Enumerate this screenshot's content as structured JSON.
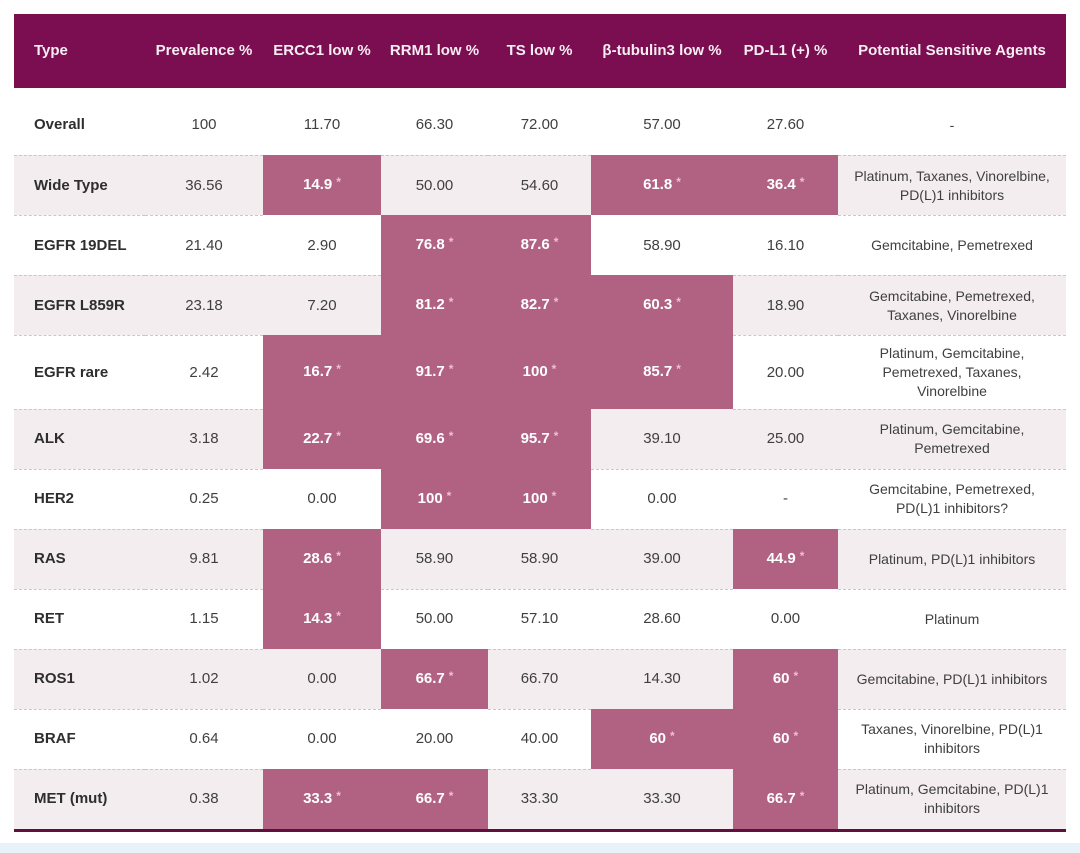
{
  "colors": {
    "header_bg": "#7a0e50",
    "header_text": "#f8ecf3",
    "highlight_bg": "#b16283",
    "highlight_text": "#ffffff",
    "asterisk_color": "#f2bdd6",
    "alt_row_bg": "#f3edf0",
    "row_bg": "#ffffff",
    "body_text": "#3f3f3f",
    "dash_color": "#c8c8c8",
    "bottom_border": "#5f0f3d"
  },
  "header": {
    "columns": [
      "Type",
      "Prevalence %",
      "ERCC1 low %",
      "RRM1 low %",
      "TS low %",
      "β-tubulin3 low %",
      "PD-L1 (+) %",
      "Potential Sensitive Agents"
    ]
  },
  "rows": [
    {
      "type": "Overall",
      "values": [
        {
          "text": "100"
        },
        {
          "text": "11.70"
        },
        {
          "text": "66.30"
        },
        {
          "text": "72.00"
        },
        {
          "text": "57.00"
        },
        {
          "text": "27.60"
        }
      ],
      "agents": "-"
    },
    {
      "type": "Wide Type",
      "values": [
        {
          "text": "36.56"
        },
        {
          "text": "14.9",
          "star": true
        },
        {
          "text": "50.00"
        },
        {
          "text": "54.60"
        },
        {
          "text": "61.8",
          "star": true
        },
        {
          "text": "36.4",
          "star": true
        }
      ],
      "agents": "Platinum, Taxanes, Vinorelbine, PD(L)1 inhibitors"
    },
    {
      "type": "EGFR 19DEL",
      "values": [
        {
          "text": "21.40"
        },
        {
          "text": "2.90"
        },
        {
          "text": "76.8",
          "star": true
        },
        {
          "text": "87.6",
          "star": true
        },
        {
          "text": "58.90"
        },
        {
          "text": "16.10"
        }
      ],
      "agents": "Gemcitabine, Pemetrexed"
    },
    {
      "type": "EGFR L859R",
      "values": [
        {
          "text": "23.18"
        },
        {
          "text": "7.20"
        },
        {
          "text": "81.2",
          "star": true
        },
        {
          "text": "82.7",
          "star": true
        },
        {
          "text": "60.3",
          "star": true
        },
        {
          "text": "18.90"
        }
      ],
      "agents": "Gemcitabine, Pemetrexed, Taxanes, Vinorelbine"
    },
    {
      "type": "EGFR rare",
      "values": [
        {
          "text": "2.42"
        },
        {
          "text": "16.7",
          "star": true
        },
        {
          "text": "91.7",
          "star": true
        },
        {
          "text": "100",
          "star": true
        },
        {
          "text": "85.7",
          "star": true
        },
        {
          "text": "20.00"
        }
      ],
      "agents": "Platinum, Gemcitabine, Pemetrexed, Taxanes, Vinorelbine"
    },
    {
      "type": "ALK",
      "values": [
        {
          "text": "3.18"
        },
        {
          "text": "22.7",
          "star": true
        },
        {
          "text": "69.6",
          "star": true
        },
        {
          "text": "95.7",
          "star": true
        },
        {
          "text": "39.10"
        },
        {
          "text": "25.00"
        }
      ],
      "agents": "Platinum, Gemcitabine, Pemetrexed"
    },
    {
      "type": "HER2",
      "values": [
        {
          "text": "0.25"
        },
        {
          "text": "0.00"
        },
        {
          "text": "100",
          "star": true
        },
        {
          "text": "100",
          "star": true
        },
        {
          "text": "0.00"
        },
        {
          "text": "-"
        }
      ],
      "agents": "Gemcitabine, Pemetrexed, PD(L)1 inhibitors?"
    },
    {
      "type": "RAS",
      "values": [
        {
          "text": "9.81"
        },
        {
          "text": "28.6",
          "star": true
        },
        {
          "text": "58.90"
        },
        {
          "text": "58.90"
        },
        {
          "text": "39.00"
        },
        {
          "text": "44.9",
          "star": true
        }
      ],
      "agents": "Platinum, PD(L)1 inhibitors"
    },
    {
      "type": "RET",
      "values": [
        {
          "text": "1.15"
        },
        {
          "text": "14.3",
          "star": true
        },
        {
          "text": "50.00"
        },
        {
          "text": "57.10"
        },
        {
          "text": "28.60"
        },
        {
          "text": "0.00"
        }
      ],
      "agents": "Platinum"
    },
    {
      "type": "ROS1",
      "values": [
        {
          "text": "1.02"
        },
        {
          "text": "0.00"
        },
        {
          "text": "66.7",
          "star": true
        },
        {
          "text": "66.70"
        },
        {
          "text": "14.30"
        },
        {
          "text": "60",
          "star": true
        }
      ],
      "agents": "Gemcitabine, PD(L)1 inhibitors"
    },
    {
      "type": "BRAF",
      "values": [
        {
          "text": "0.64"
        },
        {
          "text": "0.00"
        },
        {
          "text": "20.00"
        },
        {
          "text": "40.00"
        },
        {
          "text": "60",
          "star": true
        },
        {
          "text": "60",
          "star": true
        }
      ],
      "agents": "Taxanes, Vinorelbine, PD(L)1 inhibitors"
    },
    {
      "type": "MET (mut)",
      "values": [
        {
          "text": "0.38"
        },
        {
          "text": "33.3",
          "star": true
        },
        {
          "text": "66.7",
          "star": true
        },
        {
          "text": "33.30"
        },
        {
          "text": "33.30"
        },
        {
          "text": "66.7",
          "star": true
        }
      ],
      "agents": "Platinum, Gemcitabine, PD(L)1 inhibitors"
    }
  ],
  "chart_data": {
    "type": "table",
    "title": "",
    "columns": [
      "Type",
      "Prevalence %",
      "ERCC1 low %",
      "RRM1 low %",
      "TS low %",
      "β-tubulin3 low %",
      "PD-L1 (+) %",
      "Potential Sensitive Agents"
    ],
    "rows": [
      [
        "Overall",
        "100",
        "11.70",
        "66.30",
        "72.00",
        "57.00",
        "27.60",
        "-"
      ],
      [
        "Wide Type",
        "36.56",
        "14.9 *",
        "50.00",
        "54.60",
        "61.8 *",
        "36.4 *",
        "Platinum, Taxanes, Vinorelbine, PD(L)1 inhibitors"
      ],
      [
        "EGFR 19DEL",
        "21.40",
        "2.90",
        "76.8 *",
        "87.6 *",
        "58.90",
        "16.10",
        "Gemcitabine, Pemetrexed"
      ],
      [
        "EGFR L859R",
        "23.18",
        "7.20",
        "81.2 *",
        "82.7 *",
        "60.3 *",
        "18.90",
        "Gemcitabine, Pemetrexed, Taxanes, Vinorelbine"
      ],
      [
        "EGFR rare",
        "2.42",
        "16.7 *",
        "91.7 *",
        "100 *",
        "85.7 *",
        "20.00",
        "Platinum, Gemcitabine, Pemetrexed, Taxanes, Vinorelbine"
      ],
      [
        "ALK",
        "3.18",
        "22.7 *",
        "69.6 *",
        "95.7 *",
        "39.10",
        "25.00",
        "Platinum, Gemcitabine, Pemetrexed"
      ],
      [
        "HER2",
        "0.25",
        "0.00",
        "100 *",
        "100 *",
        "0.00",
        "-",
        "Gemcitabine, Pemetrexed, PD(L)1 inhibitors?"
      ],
      [
        "RAS",
        "9.81",
        "28.6 *",
        "58.90",
        "58.90",
        "39.00",
        "44.9 *",
        "Platinum, PD(L)1 inhibitors"
      ],
      [
        "RET",
        "1.15",
        "14.3 *",
        "50.00",
        "57.10",
        "28.60",
        "0.00",
        "Platinum"
      ],
      [
        "ROS1",
        "1.02",
        "0.00",
        "66.7 *",
        "66.70",
        "14.30",
        "60 *",
        "Gemcitabine, PD(L)1 inhibitors"
      ],
      [
        "BRAF",
        "0.64",
        "0.00",
        "20.00",
        "40.00",
        "60 *",
        "60 *",
        "Taxanes, Vinorelbine, PD(L)1 inhibitors"
      ],
      [
        "MET (mut)",
        "0.38",
        "33.3 *",
        "66.7 *",
        "33.30",
        "33.30",
        "66.7 *",
        "Platinum, Gemcitabine, PD(L)1 inhibitors"
      ]
    ],
    "notes": "Values marked with * are rendered as highlighted cells (mauve background, white bold text)."
  }
}
